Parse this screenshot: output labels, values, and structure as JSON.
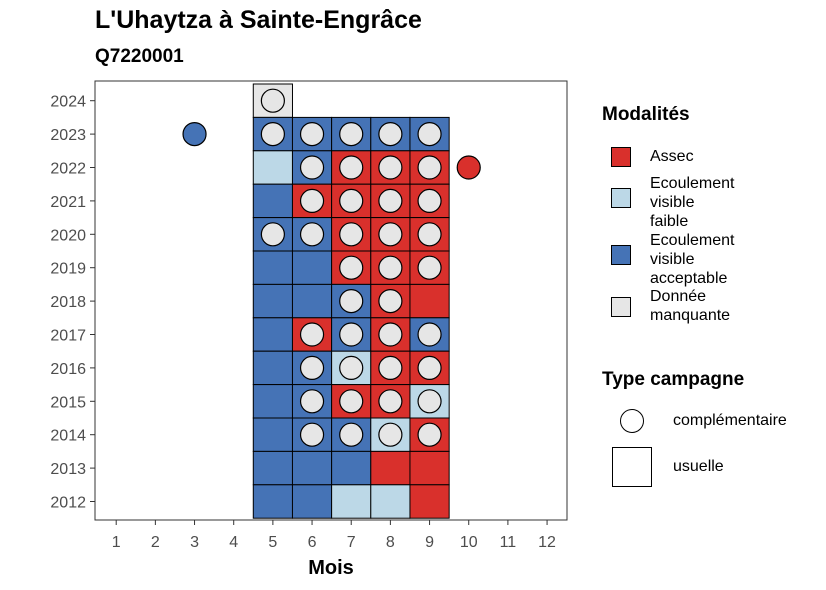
{
  "header": {
    "title": "L'Uhaytza à Sainte-Engrâce",
    "subtitle": "Q7220001"
  },
  "legend": {
    "modalites_title": "Modalités",
    "modalites": [
      {
        "lines": [
          "Assec"
        ],
        "color": "#d9302c"
      },
      {
        "lines": [
          "Ecoulement",
          "visible",
          "faible"
        ],
        "color": "#bcd8e7"
      },
      {
        "lines": [
          "Ecoulement",
          "visible",
          "acceptable"
        ],
        "color": "#4573b6"
      },
      {
        "lines": [
          "Donnée",
          "manquante"
        ],
        "color": "#e6e6e6"
      }
    ],
    "campagne_title": "Type campagne",
    "campagne": [
      {
        "label": "complémentaire",
        "shape": "circle"
      },
      {
        "label": "usuelle",
        "shape": "square"
      }
    ]
  },
  "chart_data": {
    "type": "heatmap",
    "xlabel": "Mois",
    "ylabel": "",
    "x_ticks": [
      1,
      2,
      3,
      4,
      5,
      6,
      7,
      8,
      9,
      10,
      11,
      12
    ],
    "y_ticks": [
      2012,
      2013,
      2014,
      2015,
      2016,
      2017,
      2018,
      2019,
      2020,
      2021,
      2022,
      2023,
      2024
    ],
    "xlim": [
      0.5,
      12.5
    ],
    "ylim": [
      2011.5,
      2024.5
    ],
    "colors": {
      "Assec": "#d9302c",
      "Ecoulement visible faible": "#bcd8e7",
      "Ecoulement visible acceptable": "#4573b6",
      "Donnée manquante": "#e6e6e6"
    },
    "usuelle_cells": [
      {
        "year": 2024,
        "month": 5,
        "modalite": "Donnée manquante"
      },
      {
        "year": 2023,
        "month": 5,
        "modalite": "Ecoulement visible acceptable"
      },
      {
        "year": 2023,
        "month": 6,
        "modalite": "Ecoulement visible acceptable"
      },
      {
        "year": 2023,
        "month": 7,
        "modalite": "Ecoulement visible acceptable"
      },
      {
        "year": 2023,
        "month": 8,
        "modalite": "Ecoulement visible acceptable"
      },
      {
        "year": 2023,
        "month": 9,
        "modalite": "Ecoulement visible acceptable"
      },
      {
        "year": 2022,
        "month": 5,
        "modalite": "Ecoulement visible faible"
      },
      {
        "year": 2022,
        "month": 6,
        "modalite": "Ecoulement visible acceptable"
      },
      {
        "year": 2022,
        "month": 7,
        "modalite": "Assec"
      },
      {
        "year": 2022,
        "month": 8,
        "modalite": "Assec"
      },
      {
        "year": 2022,
        "month": 9,
        "modalite": "Assec"
      },
      {
        "year": 2021,
        "month": 5,
        "modalite": "Ecoulement visible acceptable"
      },
      {
        "year": 2021,
        "month": 6,
        "modalite": "Assec"
      },
      {
        "year": 2021,
        "month": 7,
        "modalite": "Assec"
      },
      {
        "year": 2021,
        "month": 8,
        "modalite": "Assec"
      },
      {
        "year": 2021,
        "month": 9,
        "modalite": "Assec"
      },
      {
        "year": 2020,
        "month": 5,
        "modalite": "Ecoulement visible acceptable"
      },
      {
        "year": 2020,
        "month": 6,
        "modalite": "Ecoulement visible acceptable"
      },
      {
        "year": 2020,
        "month": 7,
        "modalite": "Assec"
      },
      {
        "year": 2020,
        "month": 8,
        "modalite": "Assec"
      },
      {
        "year": 2020,
        "month": 9,
        "modalite": "Assec"
      },
      {
        "year": 2019,
        "month": 5,
        "modalite": "Ecoulement visible acceptable"
      },
      {
        "year": 2019,
        "month": 6,
        "modalite": "Ecoulement visible acceptable"
      },
      {
        "year": 2019,
        "month": 7,
        "modalite": "Assec"
      },
      {
        "year": 2019,
        "month": 8,
        "modalite": "Assec"
      },
      {
        "year": 2019,
        "month": 9,
        "modalite": "Assec"
      },
      {
        "year": 2018,
        "month": 5,
        "modalite": "Ecoulement visible acceptable"
      },
      {
        "year": 2018,
        "month": 6,
        "modalite": "Ecoulement visible acceptable"
      },
      {
        "year": 2018,
        "month": 7,
        "modalite": "Ecoulement visible acceptable"
      },
      {
        "year": 2018,
        "month": 8,
        "modalite": "Assec"
      },
      {
        "year": 2018,
        "month": 9,
        "modalite": "Assec"
      },
      {
        "year": 2017,
        "month": 5,
        "modalite": "Ecoulement visible acceptable"
      },
      {
        "year": 2017,
        "month": 6,
        "modalite": "Assec"
      },
      {
        "year": 2017,
        "month": 7,
        "modalite": "Ecoulement visible acceptable"
      },
      {
        "year": 2017,
        "month": 8,
        "modalite": "Assec"
      },
      {
        "year": 2017,
        "month": 9,
        "modalite": "Ecoulement visible acceptable"
      },
      {
        "year": 2016,
        "month": 5,
        "modalite": "Ecoulement visible acceptable"
      },
      {
        "year": 2016,
        "month": 6,
        "modalite": "Ecoulement visible acceptable"
      },
      {
        "year": 2016,
        "month": 7,
        "modalite": "Ecoulement visible faible"
      },
      {
        "year": 2016,
        "month": 8,
        "modalite": "Assec"
      },
      {
        "year": 2016,
        "month": 9,
        "modalite": "Assec"
      },
      {
        "year": 2015,
        "month": 5,
        "modalite": "Ecoulement visible acceptable"
      },
      {
        "year": 2015,
        "month": 6,
        "modalite": "Ecoulement visible acceptable"
      },
      {
        "year": 2015,
        "month": 7,
        "modalite": "Assec"
      },
      {
        "year": 2015,
        "month": 8,
        "modalite": "Assec"
      },
      {
        "year": 2015,
        "month": 9,
        "modalite": "Ecoulement visible faible"
      },
      {
        "year": 2014,
        "month": 5,
        "modalite": "Ecoulement visible acceptable"
      },
      {
        "year": 2014,
        "month": 6,
        "modalite": "Ecoulement visible acceptable"
      },
      {
        "year": 2014,
        "month": 7,
        "modalite": "Ecoulement visible acceptable"
      },
      {
        "year": 2014,
        "month": 8,
        "modalite": "Ecoulement visible faible"
      },
      {
        "year": 2014,
        "month": 9,
        "modalite": "Assec"
      },
      {
        "year": 2013,
        "month": 5,
        "modalite": "Ecoulement visible acceptable"
      },
      {
        "year": 2013,
        "month": 6,
        "modalite": "Ecoulement visible acceptable"
      },
      {
        "year": 2013,
        "month": 7,
        "modalite": "Ecoulement visible acceptable"
      },
      {
        "year": 2013,
        "month": 8,
        "modalite": "Assec"
      },
      {
        "year": 2013,
        "month": 9,
        "modalite": "Assec"
      },
      {
        "year": 2012,
        "month": 5,
        "modalite": "Ecoulement visible acceptable"
      },
      {
        "year": 2012,
        "month": 6,
        "modalite": "Ecoulement visible acceptable"
      },
      {
        "year": 2012,
        "month": 7,
        "modalite": "Ecoulement visible faible"
      },
      {
        "year": 2012,
        "month": 8,
        "modalite": "Ecoulement visible faible"
      },
      {
        "year": 2012,
        "month": 9,
        "modalite": "Assec"
      }
    ],
    "complementaire_points": [
      {
        "year": 2024,
        "month": 5,
        "modalite": "Donnée manquante"
      },
      {
        "year": 2023,
        "month": 3,
        "modalite": "Ecoulement visible acceptable"
      },
      {
        "year": 2023,
        "month": 5,
        "modalite": "Donnée manquante"
      },
      {
        "year": 2023,
        "month": 6,
        "modalite": "Donnée manquante"
      },
      {
        "year": 2023,
        "month": 7,
        "modalite": "Donnée manquante"
      },
      {
        "year": 2023,
        "month": 8,
        "modalite": "Donnée manquante"
      },
      {
        "year": 2023,
        "month": 9,
        "modalite": "Donnée manquante"
      },
      {
        "year": 2022,
        "month": 6,
        "modalite": "Donnée manquante"
      },
      {
        "year": 2022,
        "month": 7,
        "modalite": "Donnée manquante"
      },
      {
        "year": 2022,
        "month": 8,
        "modalite": "Donnée manquante"
      },
      {
        "year": 2022,
        "month": 9,
        "modalite": "Donnée manquante"
      },
      {
        "year": 2022,
        "month": 10,
        "modalite": "Assec"
      },
      {
        "year": 2021,
        "month": 6,
        "modalite": "Donnée manquante"
      },
      {
        "year": 2021,
        "month": 7,
        "modalite": "Donnée manquante"
      },
      {
        "year": 2021,
        "month": 8,
        "modalite": "Donnée manquante"
      },
      {
        "year": 2021,
        "month": 9,
        "modalite": "Donnée manquante"
      },
      {
        "year": 2020,
        "month": 5,
        "modalite": "Donnée manquante"
      },
      {
        "year": 2020,
        "month": 6,
        "modalite": "Donnée manquante"
      },
      {
        "year": 2020,
        "month": 7,
        "modalite": "Donnée manquante"
      },
      {
        "year": 2020,
        "month": 8,
        "modalite": "Donnée manquante"
      },
      {
        "year": 2020,
        "month": 9,
        "modalite": "Donnée manquante"
      },
      {
        "year": 2019,
        "month": 7,
        "modalite": "Donnée manquante"
      },
      {
        "year": 2019,
        "month": 8,
        "modalite": "Donnée manquante"
      },
      {
        "year": 2019,
        "month": 9,
        "modalite": "Donnée manquante"
      },
      {
        "year": 2018,
        "month": 7,
        "modalite": "Donnée manquante"
      },
      {
        "year": 2018,
        "month": 8,
        "modalite": "Donnée manquante"
      },
      {
        "year": 2017,
        "month": 6,
        "modalite": "Donnée manquante"
      },
      {
        "year": 2017,
        "month": 7,
        "modalite": "Donnée manquante"
      },
      {
        "year": 2017,
        "month": 8,
        "modalite": "Donnée manquante"
      },
      {
        "year": 2017,
        "month": 9,
        "modalite": "Donnée manquante"
      },
      {
        "year": 2016,
        "month": 6,
        "modalite": "Donnée manquante"
      },
      {
        "year": 2016,
        "month": 7,
        "modalite": "Donnée manquante"
      },
      {
        "year": 2016,
        "month": 8,
        "modalite": "Donnée manquante"
      },
      {
        "year": 2016,
        "month": 9,
        "modalite": "Donnée manquante"
      },
      {
        "year": 2015,
        "month": 6,
        "modalite": "Donnée manquante"
      },
      {
        "year": 2015,
        "month": 7,
        "modalite": "Donnée manquante"
      },
      {
        "year": 2015,
        "month": 8,
        "modalite": "Donnée manquante"
      },
      {
        "year": 2015,
        "month": 9,
        "modalite": "Donnée manquante"
      },
      {
        "year": 2014,
        "month": 6,
        "modalite": "Donnée manquante"
      },
      {
        "year": 2014,
        "month": 7,
        "modalite": "Donnée manquante"
      },
      {
        "year": 2014,
        "month": 8,
        "modalite": "Donnée manquante"
      },
      {
        "year": 2014,
        "month": 9,
        "modalite": "Donnée manquante"
      }
    ]
  }
}
